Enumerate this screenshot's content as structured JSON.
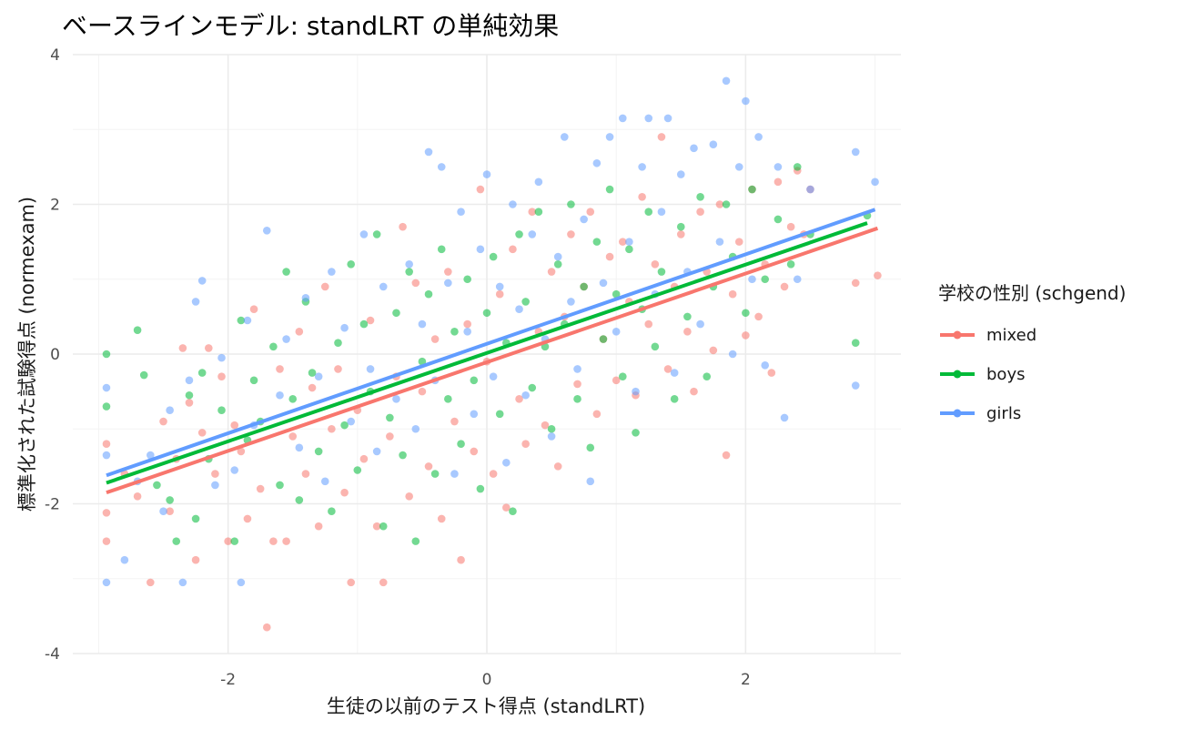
{
  "chart_data": {
    "type": "scatter",
    "title": "ベースラインモデル: standLRT の単純効果",
    "xlabel": "生徒の以前のテスト得点 (standLRT)",
    "ylabel": "標準化された試験得点 (normexam)",
    "xlim": [
      -3.2,
      3.2
    ],
    "ylim": [
      -4.0,
      4.0
    ],
    "x_ticks": [
      -2,
      0,
      2
    ],
    "y_ticks": [
      -4,
      -2,
      0,
      2,
      4
    ],
    "x_tick_labels": [
      "-2",
      "0",
      "2"
    ],
    "y_tick_labels": [
      "-4",
      "-2",
      "0",
      "2",
      "4"
    ],
    "grid": true,
    "legend": {
      "title": "学校の性別 (schgend)",
      "placement": "right"
    },
    "series": [
      {
        "name": "mixed",
        "color": "#F8766D",
        "fit_line": {
          "x": [
            -2.94,
            3.02
          ],
          "y": [
            -1.85,
            1.68
          ]
        },
        "points": [
          [
            -2.94,
            -2.12
          ],
          [
            -2.94,
            -1.2
          ],
          [
            -2.94,
            -2.5
          ],
          [
            -2.8,
            -1.6
          ],
          [
            -2.7,
            -1.9
          ],
          [
            -2.6,
            -3.05
          ],
          [
            -2.5,
            -0.9
          ],
          [
            -2.45,
            -2.1
          ],
          [
            -2.4,
            -1.4
          ],
          [
            -2.35,
            0.08
          ],
          [
            -2.3,
            -0.65
          ],
          [
            -2.25,
            -2.75
          ],
          [
            -2.2,
            -1.05
          ],
          [
            -2.15,
            0.08
          ],
          [
            -2.1,
            -1.6
          ],
          [
            -2.05,
            -0.3
          ],
          [
            -2.0,
            -2.5
          ],
          [
            -1.95,
            -0.95
          ],
          [
            -1.9,
            -1.3
          ],
          [
            -1.85,
            -2.2
          ],
          [
            -1.8,
            0.6
          ],
          [
            -1.75,
            -1.8
          ],
          [
            -1.7,
            -3.65
          ],
          [
            -1.65,
            -2.5
          ],
          [
            -1.6,
            -0.2
          ],
          [
            -1.55,
            -2.5
          ],
          [
            -1.5,
            -1.1
          ],
          [
            -1.45,
            0.3
          ],
          [
            -1.4,
            -1.6
          ],
          [
            -1.35,
            -0.45
          ],
          [
            -1.3,
            -2.3
          ],
          [
            -1.25,
            0.9
          ],
          [
            -1.2,
            -1.0
          ],
          [
            -1.15,
            -0.2
          ],
          [
            -1.1,
            -1.85
          ],
          [
            -1.05,
            -3.05
          ],
          [
            -1.0,
            -0.75
          ],
          [
            -0.95,
            -1.4
          ],
          [
            -0.9,
            0.45
          ],
          [
            -0.85,
            -2.3
          ],
          [
            -0.8,
            -3.05
          ],
          [
            -0.75,
            -1.1
          ],
          [
            -0.7,
            -0.3
          ],
          [
            -0.65,
            1.7
          ],
          [
            -0.6,
            -1.9
          ],
          [
            -0.55,
            0.95
          ],
          [
            -0.5,
            -0.5
          ],
          [
            -0.45,
            -1.5
          ],
          [
            -0.4,
            0.2
          ],
          [
            -0.35,
            -2.2
          ],
          [
            -0.3,
            1.1
          ],
          [
            -0.25,
            -0.9
          ],
          [
            -0.2,
            -2.75
          ],
          [
            -0.15,
            0.4
          ],
          [
            -0.1,
            -1.3
          ],
          [
            -0.05,
            2.2
          ],
          [
            0.0,
            -0.1
          ],
          [
            0.05,
            -1.6
          ],
          [
            0.1,
            0.8
          ],
          [
            0.15,
            -2.05
          ],
          [
            0.2,
            1.4
          ],
          [
            0.25,
            -0.6
          ],
          [
            0.3,
            -1.2
          ],
          [
            0.35,
            1.9
          ],
          [
            0.4,
            0.3
          ],
          [
            0.45,
            -0.95
          ],
          [
            0.5,
            1.1
          ],
          [
            0.55,
            -1.5
          ],
          [
            0.6,
            0.5
          ],
          [
            0.65,
            1.6
          ],
          [
            0.7,
            -0.4
          ],
          [
            0.75,
            0.9
          ],
          [
            0.8,
            1.9
          ],
          [
            0.85,
            -0.8
          ],
          [
            0.9,
            0.2
          ],
          [
            0.95,
            1.3
          ],
          [
            1.0,
            -0.35
          ],
          [
            1.05,
            1.5
          ],
          [
            1.1,
            0.7
          ],
          [
            1.15,
            -0.55
          ],
          [
            1.2,
            2.1
          ],
          [
            1.25,
            0.4
          ],
          [
            1.3,
            1.2
          ],
          [
            1.35,
            2.9
          ],
          [
            1.4,
            -0.2
          ],
          [
            1.45,
            0.9
          ],
          [
            1.5,
            1.6
          ],
          [
            1.55,
            0.3
          ],
          [
            1.6,
            -0.5
          ],
          [
            1.65,
            1.9
          ],
          [
            1.7,
            1.1
          ],
          [
            1.75,
            0.05
          ],
          [
            1.8,
            2.0
          ],
          [
            1.85,
            -1.35
          ],
          [
            1.9,
            0.8
          ],
          [
            1.95,
            1.5
          ],
          [
            2.0,
            0.25
          ],
          [
            2.05,
            2.2
          ],
          [
            2.1,
            0.5
          ],
          [
            2.15,
            1.2
          ],
          [
            2.2,
            -0.25
          ],
          [
            2.25,
            2.3
          ],
          [
            2.3,
            0.9
          ],
          [
            2.35,
            1.7
          ],
          [
            2.4,
            2.45
          ],
          [
            2.45,
            1.6
          ],
          [
            2.5,
            2.2
          ],
          [
            2.85,
            0.95
          ],
          [
            3.02,
            1.05
          ]
        ]
      },
      {
        "name": "boys",
        "color": "#00BA38",
        "fit_line": {
          "x": [
            -2.94,
            2.94
          ],
          "y": [
            -1.72,
            1.75
          ]
        },
        "points": [
          [
            -2.94,
            0.0
          ],
          [
            -2.94,
            -0.7
          ],
          [
            -2.7,
            0.32
          ],
          [
            -2.65,
            -0.28
          ],
          [
            -2.55,
            -1.75
          ],
          [
            -2.45,
            -1.95
          ],
          [
            -2.4,
            -2.5
          ],
          [
            -2.3,
            -0.55
          ],
          [
            -2.25,
            -2.2
          ],
          [
            -2.2,
            -0.25
          ],
          [
            -2.15,
            -1.4
          ],
          [
            -2.05,
            -0.75
          ],
          [
            -1.95,
            -2.5
          ],
          [
            -1.9,
            0.45
          ],
          [
            -1.85,
            -1.15
          ],
          [
            -1.8,
            -0.35
          ],
          [
            -1.75,
            -0.9
          ],
          [
            -1.65,
            0.1
          ],
          [
            -1.6,
            -1.75
          ],
          [
            -1.55,
            1.1
          ],
          [
            -1.5,
            -0.6
          ],
          [
            -1.45,
            -1.95
          ],
          [
            -1.4,
            0.7
          ],
          [
            -1.35,
            -0.25
          ],
          [
            -1.3,
            -1.3
          ],
          [
            -1.2,
            -2.1
          ],
          [
            -1.15,
            0.15
          ],
          [
            -1.1,
            -0.95
          ],
          [
            -1.05,
            1.2
          ],
          [
            -1.0,
            -1.55
          ],
          [
            -0.95,
            0.4
          ],
          [
            -0.9,
            -0.5
          ],
          [
            -0.85,
            1.6
          ],
          [
            -0.8,
            -2.3
          ],
          [
            -0.75,
            -0.85
          ],
          [
            -0.7,
            0.55
          ],
          [
            -0.65,
            -1.35
          ],
          [
            -0.6,
            1.1
          ],
          [
            -0.55,
            -2.5
          ],
          [
            -0.5,
            -0.1
          ],
          [
            -0.45,
            0.8
          ],
          [
            -0.4,
            -1.6
          ],
          [
            -0.35,
            1.4
          ],
          [
            -0.3,
            -0.6
          ],
          [
            -0.25,
            0.3
          ],
          [
            -0.2,
            -1.2
          ],
          [
            -0.15,
            1.0
          ],
          [
            -0.1,
            -0.35
          ],
          [
            -0.05,
            -1.8
          ],
          [
            0.0,
            0.55
          ],
          [
            0.05,
            1.3
          ],
          [
            0.1,
            -0.8
          ],
          [
            0.15,
            0.15
          ],
          [
            0.2,
            -2.1
          ],
          [
            0.25,
            1.6
          ],
          [
            0.3,
            0.7
          ],
          [
            0.35,
            -0.45
          ],
          [
            0.4,
            1.9
          ],
          [
            0.45,
            0.1
          ],
          [
            0.5,
            -1.0
          ],
          [
            0.55,
            1.2
          ],
          [
            0.6,
            0.4
          ],
          [
            0.65,
            2.0
          ],
          [
            0.7,
            -0.6
          ],
          [
            0.75,
            0.9
          ],
          [
            0.8,
            -1.25
          ],
          [
            0.85,
            1.5
          ],
          [
            0.9,
            0.2
          ],
          [
            0.95,
            2.2
          ],
          [
            1.0,
            0.8
          ],
          [
            1.05,
            -0.3
          ],
          [
            1.1,
            1.4
          ],
          [
            1.15,
            -1.05
          ],
          [
            1.2,
            0.6
          ],
          [
            1.25,
            1.9
          ],
          [
            1.3,
            0.1
          ],
          [
            1.35,
            1.1
          ],
          [
            1.45,
            -0.6
          ],
          [
            1.5,
            1.7
          ],
          [
            1.55,
            0.5
          ],
          [
            1.65,
            2.1
          ],
          [
            1.7,
            -0.3
          ],
          [
            1.75,
            0.9
          ],
          [
            1.85,
            2.0
          ],
          [
            1.9,
            1.3
          ],
          [
            2.0,
            0.55
          ],
          [
            2.05,
            2.2
          ],
          [
            2.15,
            1.0
          ],
          [
            2.25,
            1.8
          ],
          [
            2.35,
            1.2
          ],
          [
            2.4,
            2.5
          ],
          [
            2.5,
            1.6
          ],
          [
            2.85,
            0.15
          ],
          [
            2.94,
            1.85
          ]
        ]
      },
      {
        "name": "girls",
        "color": "#619CFF",
        "fit_line": {
          "x": [
            -2.94,
            3.0
          ],
          "y": [
            -1.62,
            1.93
          ]
        },
        "points": [
          [
            -2.94,
            -0.45
          ],
          [
            -2.94,
            -3.05
          ],
          [
            -2.94,
            -1.35
          ],
          [
            -2.8,
            -2.75
          ],
          [
            -2.7,
            -1.7
          ],
          [
            -2.6,
            -1.35
          ],
          [
            -2.5,
            -2.1
          ],
          [
            -2.45,
            -0.75
          ],
          [
            -2.35,
            -3.05
          ],
          [
            -2.3,
            -0.35
          ],
          [
            -2.25,
            0.7
          ],
          [
            -2.2,
            0.98
          ],
          [
            -2.1,
            -1.75
          ],
          [
            -2.05,
            -0.05
          ],
          [
            -1.95,
            -1.55
          ],
          [
            -1.9,
            -3.05
          ],
          [
            -1.85,
            0.45
          ],
          [
            -1.8,
            -0.95
          ],
          [
            -1.7,
            1.65
          ],
          [
            -1.6,
            -0.55
          ],
          [
            -1.55,
            0.2
          ],
          [
            -1.45,
            -1.25
          ],
          [
            -1.4,
            0.75
          ],
          [
            -1.3,
            -0.3
          ],
          [
            -1.25,
            -1.7
          ],
          [
            -1.2,
            1.1
          ],
          [
            -1.1,
            0.35
          ],
          [
            -1.05,
            -0.9
          ],
          [
            -0.95,
            1.6
          ],
          [
            -0.9,
            -0.2
          ],
          [
            -0.85,
            -1.3
          ],
          [
            -0.8,
            0.9
          ],
          [
            -0.7,
            -0.6
          ],
          [
            -0.6,
            1.2
          ],
          [
            -0.55,
            -1.0
          ],
          [
            -0.5,
            0.4
          ],
          [
            -0.45,
            2.7
          ],
          [
            -0.4,
            -0.35
          ],
          [
            -0.35,
            2.5
          ],
          [
            -0.3,
            0.95
          ],
          [
            -0.25,
            -1.6
          ],
          [
            -0.2,
            1.9
          ],
          [
            -0.15,
            0.3
          ],
          [
            -0.1,
            -0.8
          ],
          [
            -0.05,
            1.4
          ],
          [
            0.0,
            2.4
          ],
          [
            0.05,
            -0.3
          ],
          [
            0.1,
            0.9
          ],
          [
            0.15,
            -1.45
          ],
          [
            0.2,
            2.0
          ],
          [
            0.25,
            0.6
          ],
          [
            0.3,
            -0.55
          ],
          [
            0.35,
            1.6
          ],
          [
            0.4,
            2.3
          ],
          [
            0.45,
            0.2
          ],
          [
            0.5,
            -1.1
          ],
          [
            0.55,
            1.3
          ],
          [
            0.6,
            2.9
          ],
          [
            0.65,
            0.7
          ],
          [
            0.7,
            -0.2
          ],
          [
            0.75,
            1.8
          ],
          [
            0.8,
            -1.7
          ],
          [
            0.85,
            2.55
          ],
          [
            0.9,
            0.95
          ],
          [
            0.95,
            2.9
          ],
          [
            1.0,
            0.3
          ],
          [
            1.05,
            3.15
          ],
          [
            1.1,
            1.5
          ],
          [
            1.15,
            -0.5
          ],
          [
            1.2,
            2.5
          ],
          [
            1.25,
            3.15
          ],
          [
            1.3,
            0.8
          ],
          [
            1.35,
            1.9
          ],
          [
            1.4,
            3.15
          ],
          [
            1.45,
            -0.25
          ],
          [
            1.5,
            2.4
          ],
          [
            1.55,
            1.1
          ],
          [
            1.6,
            2.75
          ],
          [
            1.65,
            0.4
          ],
          [
            1.75,
            2.8
          ],
          [
            1.8,
            1.5
          ],
          [
            1.85,
            3.65
          ],
          [
            1.9,
            0.0
          ],
          [
            1.95,
            2.5
          ],
          [
            2.0,
            3.38
          ],
          [
            2.05,
            1.0
          ],
          [
            2.1,
            2.9
          ],
          [
            2.15,
            -0.15
          ],
          [
            2.25,
            2.5
          ],
          [
            2.3,
            -0.85
          ],
          [
            2.4,
            1.0
          ],
          [
            2.5,
            2.2
          ],
          [
            2.85,
            2.7
          ],
          [
            2.85,
            -0.42
          ],
          [
            3.0,
            2.3
          ]
        ]
      }
    ]
  }
}
